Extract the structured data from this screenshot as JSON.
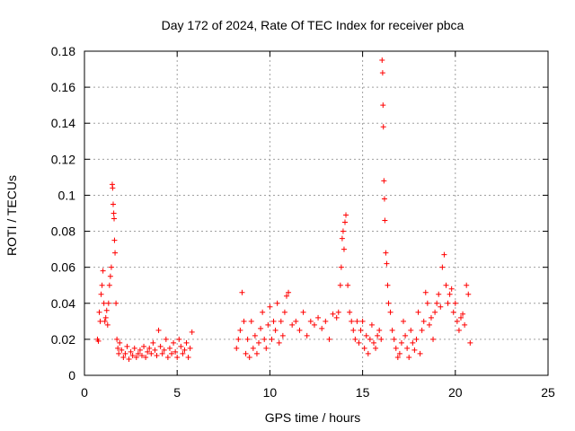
{
  "chart_data": {
    "type": "scatter",
    "title": "Day 172 of 2024, Rate Of TEC Index for receiver pbca",
    "xlabel": "GPS time / hours",
    "ylabel": "ROTI / TECUs",
    "xlim": [
      0,
      25
    ],
    "ylim": [
      0,
      0.18
    ],
    "xticks": [
      0,
      5,
      10,
      15,
      20,
      25
    ],
    "xtick_labels": [
      "0",
      "5",
      "10",
      "15",
      "20",
      "25"
    ],
    "yticks": [
      0,
      0.02,
      0.04,
      0.06,
      0.08,
      0.1,
      0.12,
      0.14,
      0.16,
      0.18
    ],
    "ytick_labels": [
      "0",
      "0.02",
      "0.04",
      "0.06",
      "0.08",
      "0.1",
      "0.12",
      "0.14",
      "0.16",
      "0.18"
    ],
    "grid": true,
    "marker": "+",
    "color": "#ff0000",
    "series": [
      {
        "x": [
          0.7,
          0.75,
          0.8,
          0.85,
          0.9,
          0.95,
          1.0,
          1.05,
          1.1,
          1.15,
          1.2,
          1.25,
          1.3,
          1.35,
          1.4,
          1.45,
          1.5,
          1.52,
          1.55,
          1.58,
          1.6,
          1.62,
          1.65,
          1.7,
          1.75,
          1.8,
          1.85,
          1.9,
          2.0,
          2.1,
          2.2,
          2.3,
          2.4,
          2.5,
          2.6,
          2.7,
          2.8,
          2.9,
          3.0,
          3.1,
          3.2,
          3.3,
          3.4,
          3.5,
          3.6,
          3.7,
          3.8,
          3.9,
          4.0,
          4.1,
          4.2,
          4.3,
          4.4,
          4.5,
          4.6,
          4.7,
          4.8,
          4.9,
          5.0,
          5.1,
          5.2,
          5.3,
          5.4,
          5.5,
          5.6,
          5.7,
          5.8,
          8.2,
          8.3,
          8.4,
          8.5,
          8.6,
          8.7,
          8.8,
          8.9,
          9.0,
          9.1,
          9.2,
          9.3,
          9.4,
          9.5,
          9.6,
          9.7,
          9.8,
          9.9,
          10.0,
          10.1,
          10.2,
          10.3,
          10.4,
          10.5,
          10.6,
          10.7,
          10.8,
          10.9,
          11.0,
          11.2,
          11.4,
          11.6,
          11.8,
          12.0,
          12.2,
          12.4,
          12.6,
          12.8,
          13.0,
          13.2,
          13.4,
          13.6,
          13.7,
          13.8,
          13.85,
          13.9,
          13.95,
          14.0,
          14.05,
          14.1,
          14.2,
          14.3,
          14.4,
          14.5,
          14.6,
          14.7,
          14.8,
          14.9,
          15.0,
          15.1,
          15.2,
          15.3,
          15.4,
          15.5,
          15.6,
          15.7,
          15.8,
          15.9,
          16.0,
          16.05,
          16.08,
          16.1,
          16.12,
          16.15,
          16.18,
          16.2,
          16.25,
          16.3,
          16.35,
          16.4,
          16.5,
          16.6,
          16.7,
          16.8,
          16.9,
          17.0,
          17.1,
          17.2,
          17.3,
          17.4,
          17.5,
          17.6,
          17.7,
          17.8,
          17.9,
          18.0,
          18.1,
          18.2,
          18.3,
          18.4,
          18.5,
          18.6,
          18.7,
          18.8,
          18.9,
          19.0,
          19.1,
          19.2,
          19.3,
          19.4,
          19.5,
          19.6,
          19.7,
          19.8,
          19.9,
          20.0,
          20.1,
          20.2,
          20.3,
          20.4,
          20.5,
          20.6,
          20.7,
          20.8
        ],
        "y": [
          0.02,
          0.019,
          0.035,
          0.03,
          0.045,
          0.05,
          0.058,
          0.04,
          0.03,
          0.032,
          0.036,
          0.028,
          0.04,
          0.05,
          0.055,
          0.06,
          0.106,
          0.104,
          0.095,
          0.09,
          0.087,
          0.075,
          0.068,
          0.04,
          0.02,
          0.015,
          0.012,
          0.018,
          0.014,
          0.01,
          0.012,
          0.016,
          0.009,
          0.013,
          0.011,
          0.015,
          0.01,
          0.012,
          0.014,
          0.011,
          0.016,
          0.01,
          0.013,
          0.015,
          0.012,
          0.018,
          0.014,
          0.011,
          0.025,
          0.016,
          0.012,
          0.014,
          0.02,
          0.01,
          0.015,
          0.012,
          0.018,
          0.013,
          0.01,
          0.02,
          0.016,
          0.012,
          0.014,
          0.018,
          0.01,
          0.015,
          0.024,
          0.015,
          0.02,
          0.025,
          0.046,
          0.03,
          0.012,
          0.02,
          0.01,
          0.03,
          0.015,
          0.022,
          0.012,
          0.018,
          0.026,
          0.035,
          0.02,
          0.015,
          0.028,
          0.038,
          0.02,
          0.03,
          0.025,
          0.04,
          0.018,
          0.03,
          0.022,
          0.035,
          0.044,
          0.046,
          0.028,
          0.03,
          0.025,
          0.035,
          0.022,
          0.03,
          0.028,
          0.032,
          0.026,
          0.03,
          0.02,
          0.034,
          0.032,
          0.035,
          0.05,
          0.06,
          0.076,
          0.08,
          0.07,
          0.085,
          0.089,
          0.05,
          0.035,
          0.03,
          0.025,
          0.02,
          0.03,
          0.018,
          0.025,
          0.03,
          0.015,
          0.022,
          0.012,
          0.02,
          0.028,
          0.018,
          0.015,
          0.022,
          0.025,
          0.02,
          0.175,
          0.168,
          0.15,
          0.138,
          0.108,
          0.098,
          0.086,
          0.068,
          0.062,
          0.05,
          0.04,
          0.035,
          0.025,
          0.02,
          0.015,
          0.01,
          0.012,
          0.018,
          0.03,
          0.022,
          0.015,
          0.01,
          0.025,
          0.018,
          0.014,
          0.02,
          0.035,
          0.012,
          0.025,
          0.03,
          0.046,
          0.04,
          0.028,
          0.032,
          0.02,
          0.035,
          0.04,
          0.045,
          0.038,
          0.06,
          0.067,
          0.05,
          0.04,
          0.045,
          0.048,
          0.035,
          0.04,
          0.03,
          0.025,
          0.032,
          0.034,
          0.028,
          0.05,
          0.045,
          0.018
        ]
      }
    ]
  }
}
